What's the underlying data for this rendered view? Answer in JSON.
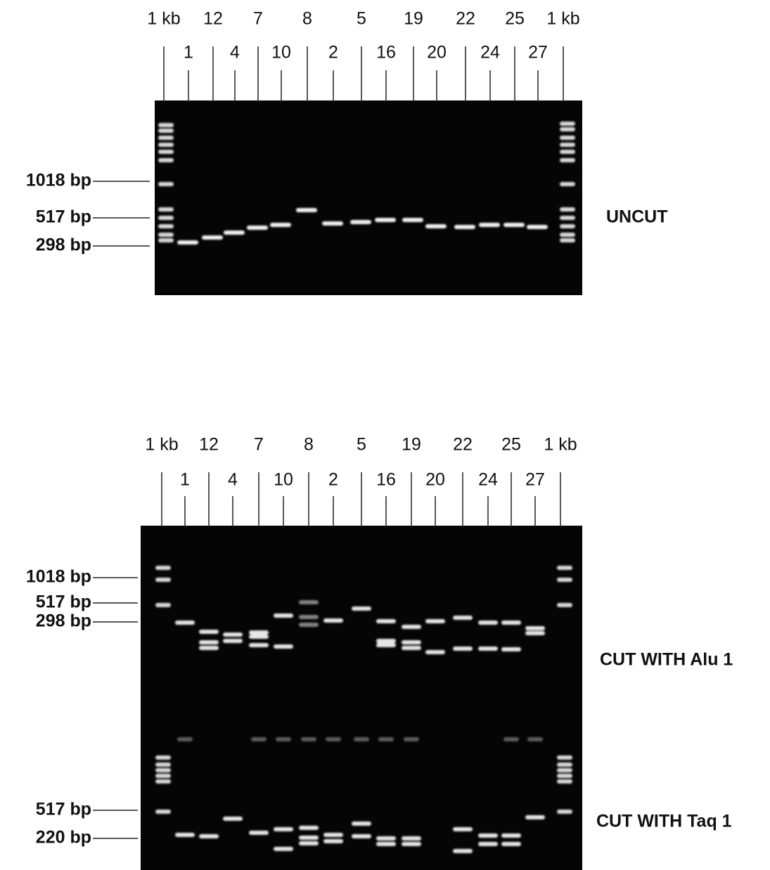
{
  "panels": [
    {
      "lane_labels_top": [
        "1 kb",
        "12",
        "7",
        "8",
        "5",
        "19",
        "22",
        "25",
        "1 kb"
      ],
      "lane_labels_bottom": [
        "1",
        "4",
        "10",
        "2",
        "16",
        "20",
        "24",
        "27"
      ],
      "size_markers": [
        "1018 bp",
        "517 bp",
        "298 bp"
      ],
      "conditions": [
        "UNCUT"
      ]
    },
    {
      "lane_labels_top": [
        "1 kb",
        "12",
        "7",
        "8",
        "5",
        "19",
        "22",
        "25",
        "1 kb"
      ],
      "lane_labels_bottom": [
        "1",
        "4",
        "10",
        "2",
        "16",
        "20",
        "24",
        "27"
      ],
      "size_markers": [
        "1018 bp",
        "517 bp",
        "298 bp",
        "517 bp",
        "220 bp"
      ],
      "conditions": [
        "CUT WITH Alu 1",
        "CUT WITH Taq 1"
      ]
    }
  ]
}
